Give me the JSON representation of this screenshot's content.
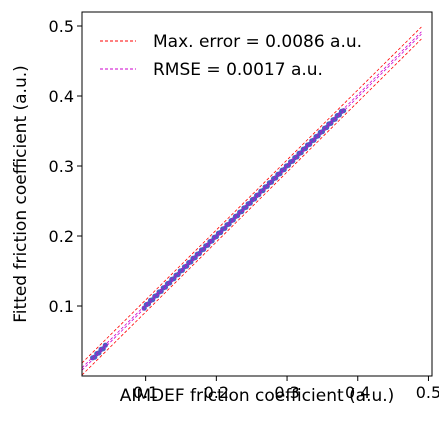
{
  "chart_data": {
    "type": "scatter",
    "title": "",
    "xlabel": "AIMDEF friction coefficient (a.u.)",
    "ylabel": "Fitted friction coefficient (a.u.)",
    "xlim": [
      0.01,
      0.505
    ],
    "ylim": [
      0.0,
      0.52
    ],
    "xticks": [
      0.1,
      0.2,
      0.3,
      0.4,
      0.5
    ],
    "xtick_labels": [
      "0.1",
      "0.2",
      "0.3",
      "0.4",
      "0.5"
    ],
    "yticks": [
      0.1,
      0.2,
      0.3,
      0.4,
      0.5
    ],
    "ytick_labels": [
      "0.1",
      "0.2",
      "0.3",
      "0.4",
      "0.5"
    ],
    "grid": false,
    "legend_position": "top-left",
    "legend": [
      {
        "label": "Max. error = 0.0086 a.u.",
        "color": "#ff0000",
        "style": "dashed"
      },
      {
        "label": "RMSE = 0.0017 a.u.",
        "color": "#cc00cc",
        "style": "dashed"
      }
    ],
    "reference_lines": [
      {
        "name": "max-error-upper",
        "legend_index": 0,
        "offset": 0.0086,
        "x_range": [
          0.01,
          0.49
        ]
      },
      {
        "name": "max-error-lower",
        "legend_index": 0,
        "offset": -0.0086,
        "x_range": [
          0.01,
          0.49
        ]
      },
      {
        "name": "rmse-upper",
        "legend_index": 1,
        "offset": 0.0017,
        "x_range": [
          0.01,
          0.49
        ]
      },
      {
        "name": "rmse-lower",
        "legend_index": 1,
        "offset": -0.0017,
        "x_range": [
          0.01,
          0.49
        ]
      }
    ],
    "series": [
      {
        "color": "#4a5fc1",
        "x": [
          0.025,
          0.028,
          0.031,
          0.034,
          0.037,
          0.04,
          0.043,
          0.098,
          0.101,
          0.104,
          0.107,
          0.11,
          0.113,
          0.116,
          0.119,
          0.122,
          0.125,
          0.128,
          0.131,
          0.134,
          0.137,
          0.14,
          0.143,
          0.146,
          0.149,
          0.152,
          0.155,
          0.158,
          0.161,
          0.164,
          0.167,
          0.17,
          0.173,
          0.176,
          0.179,
          0.182,
          0.185,
          0.188,
          0.191,
          0.194,
          0.197,
          0.2,
          0.203,
          0.206,
          0.209,
          0.212,
          0.215,
          0.218,
          0.221,
          0.224,
          0.227,
          0.23,
          0.233,
          0.236,
          0.239,
          0.242,
          0.245,
          0.248,
          0.251,
          0.254,
          0.257,
          0.26,
          0.263,
          0.266,
          0.269,
          0.272,
          0.275,
          0.278,
          0.281,
          0.284,
          0.287,
          0.29,
          0.293,
          0.296,
          0.299,
          0.302,
          0.305,
          0.308,
          0.311,
          0.314,
          0.317,
          0.32,
          0.323,
          0.326,
          0.329,
          0.332,
          0.335,
          0.338,
          0.341,
          0.344,
          0.347,
          0.35,
          0.353,
          0.356,
          0.359,
          0.362,
          0.365,
          0.368,
          0.371,
          0.374,
          0.377,
          0.38
        ],
        "y": [
          0.026,
          0.027,
          0.032,
          0.033,
          0.038,
          0.039,
          0.044,
          0.097,
          0.102,
          0.103,
          0.108,
          0.109,
          0.114,
          0.115,
          0.12,
          0.121,
          0.126,
          0.127,
          0.132,
          0.133,
          0.138,
          0.139,
          0.144,
          0.145,
          0.15,
          0.151,
          0.156,
          0.157,
          0.162,
          0.163,
          0.168,
          0.169,
          0.174,
          0.175,
          0.18,
          0.181,
          0.186,
          0.187,
          0.192,
          0.193,
          0.198,
          0.199,
          0.204,
          0.205,
          0.21,
          0.211,
          0.216,
          0.217,
          0.222,
          0.223,
          0.228,
          0.229,
          0.234,
          0.235,
          0.24,
          0.241,
          0.246,
          0.247,
          0.252,
          0.253,
          0.258,
          0.259,
          0.264,
          0.265,
          0.27,
          0.271,
          0.276,
          0.277,
          0.282,
          0.283,
          0.288,
          0.289,
          0.294,
          0.295,
          0.3,
          0.301,
          0.306,
          0.307,
          0.312,
          0.313,
          0.318,
          0.319,
          0.324,
          0.325,
          0.33,
          0.331,
          0.336,
          0.337,
          0.342,
          0.343,
          0.348,
          0.349,
          0.354,
          0.355,
          0.36,
          0.361,
          0.366,
          0.367,
          0.372,
          0.373,
          0.378,
          0.379
        ]
      }
    ]
  }
}
